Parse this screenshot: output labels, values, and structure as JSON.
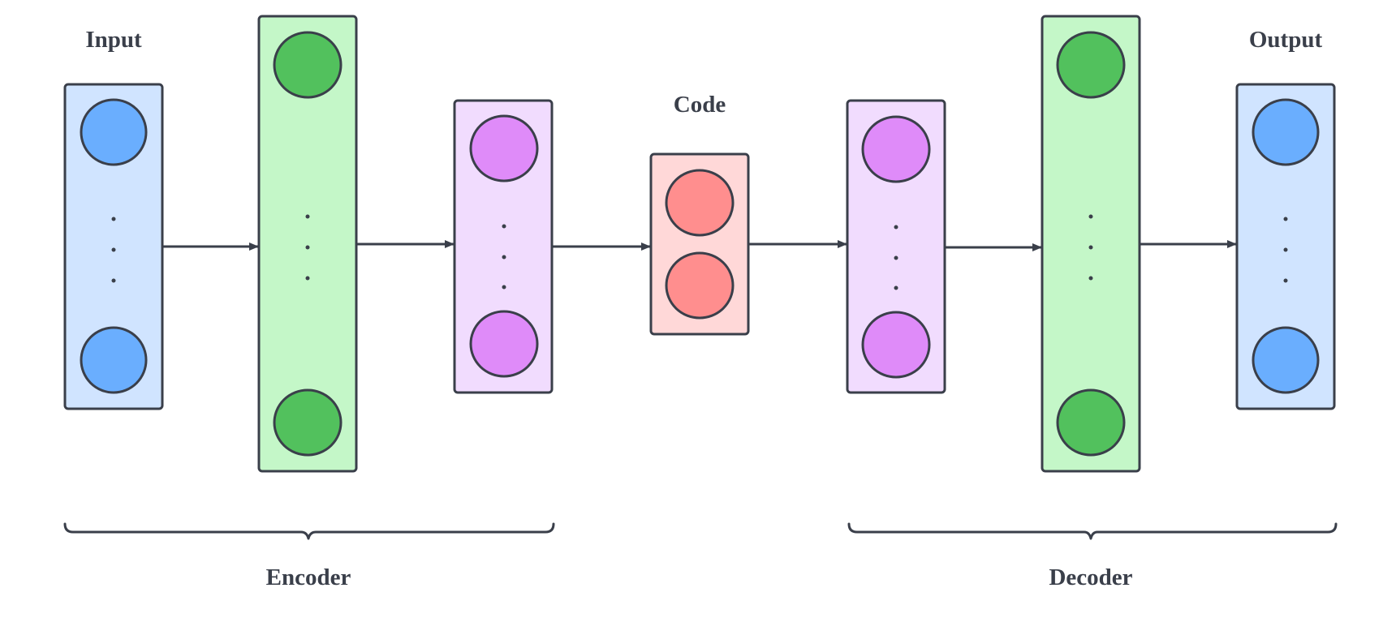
{
  "labels": {
    "input": "Input",
    "output": "Output",
    "code": "Code",
    "encoder": "Encoder",
    "decoder": "Decoder"
  },
  "colors": {
    "stroke": "#3a3f4a",
    "input_fill": "#d0e4ff",
    "input_node": "#6aaefe",
    "hidden1_fill": "#c4f7c8",
    "hidden1_node": "#52c15d",
    "hidden2_fill": "#f1dcfe",
    "hidden2_node": "#df8bf9",
    "code_fill": "#ffd8d8",
    "code_node": "#ff8e8e"
  },
  "layers": [
    {
      "name": "input-layer",
      "type": "input",
      "ellipsis": true
    },
    {
      "name": "encoder-hidden-layer-1",
      "type": "hidden1",
      "ellipsis": true
    },
    {
      "name": "encoder-hidden-layer-2",
      "type": "hidden2",
      "ellipsis": true
    },
    {
      "name": "code-layer",
      "type": "code",
      "ellipsis": false
    },
    {
      "name": "decoder-hidden-layer-1",
      "type": "hidden2",
      "ellipsis": true
    },
    {
      "name": "decoder-hidden-layer-2",
      "type": "hidden1",
      "ellipsis": true
    },
    {
      "name": "output-layer",
      "type": "input",
      "ellipsis": true
    }
  ]
}
